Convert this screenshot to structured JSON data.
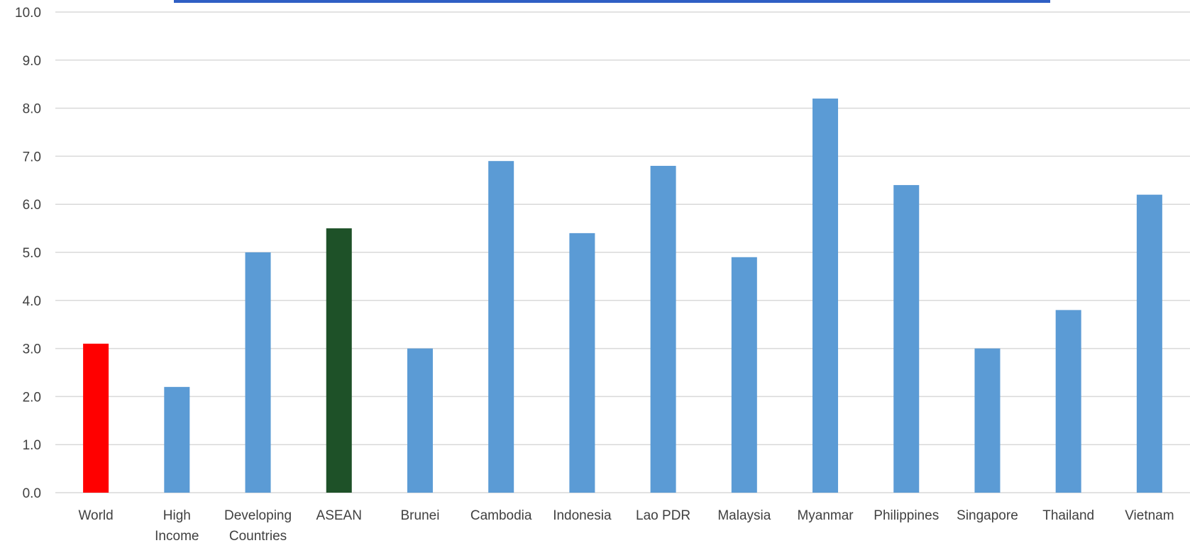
{
  "chart_data": {
    "type": "bar",
    "title": "",
    "xlabel": "",
    "ylabel": "",
    "ylim": [
      0,
      10
    ],
    "yticks": [
      "0.0",
      "1.0",
      "2.0",
      "3.0",
      "4.0",
      "5.0",
      "6.0",
      "7.0",
      "8.0",
      "9.0",
      "10.0"
    ],
    "grid": true,
    "categories": [
      [
        "World"
      ],
      [
        "High",
        "Income"
      ],
      [
        "Developing",
        "Countries"
      ],
      [
        "ASEAN"
      ],
      [
        "Brunei"
      ],
      [
        "Cambodia"
      ],
      [
        "Indonesia"
      ],
      [
        "Lao PDR"
      ],
      [
        "Malaysia"
      ],
      [
        "Myanmar"
      ],
      [
        "Philippines"
      ],
      [
        "Singapore"
      ],
      [
        "Thailand"
      ],
      [
        "Vietnam"
      ]
    ],
    "values": [
      3.1,
      2.2,
      5.0,
      5.5,
      3.0,
      6.9,
      5.4,
      6.8,
      4.9,
      8.2,
      6.4,
      3.0,
      3.8,
      6.2
    ],
    "colors": [
      "#ff0000",
      "#5b9bd5",
      "#5b9bd5",
      "#1e5128",
      "#5b9bd5",
      "#5b9bd5",
      "#5b9bd5",
      "#5b9bd5",
      "#5b9bd5",
      "#5b9bd5",
      "#5b9bd5",
      "#5b9bd5",
      "#5b9bd5",
      "#5b9bd5"
    ]
  },
  "colors": {
    "gridline": "#d9d9d9",
    "axis_text": "#404040",
    "top_band": "#2f5fc4"
  }
}
